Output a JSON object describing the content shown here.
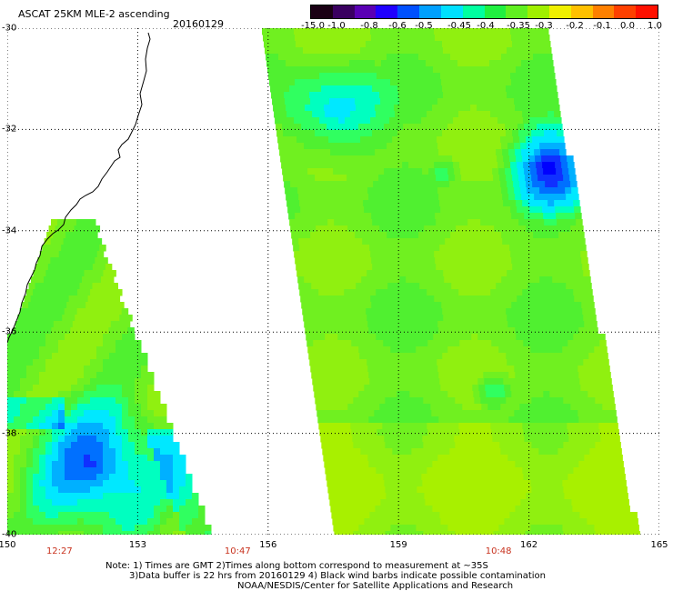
{
  "header": {
    "title": "ASCAT 25KM MLE-2 ascending",
    "date": "20160129"
  },
  "colorbar": {
    "labels": [
      "-15.0",
      "-1.0",
      "-0.8",
      "-0.6",
      "-0.5",
      "-0.45",
      "-0.4",
      "-0.35",
      "-0.3",
      "-0.2",
      "-0.1",
      "0.0",
      "1.0"
    ],
    "colors": [
      "#1a0014",
      "#3a0060",
      "#5a00b4",
      "#2000ff",
      "#0050ff",
      "#00a0ff",
      "#00e0ff",
      "#00ffa0",
      "#20f040",
      "#60f020",
      "#a0f000",
      "#f0f000",
      "#ffc000",
      "#ff8000",
      "#ff4000",
      "#ff1000"
    ]
  },
  "axes": {
    "lat_labels": [
      "-30",
      "-32",
      "-34",
      "-36",
      "-38",
      "-40"
    ],
    "lat_values": [
      -30,
      -32,
      -34,
      -36,
      -38,
      -40
    ],
    "lon_labels": [
      "150",
      "153",
      "156",
      "159",
      "162",
      "165"
    ],
    "lon_values": [
      150,
      153,
      156,
      159,
      162,
      165
    ],
    "lon_range": [
      150,
      165
    ],
    "lat_range": [
      -30,
      -40
    ]
  },
  "swath_times": [
    "12:27",
    "10:47",
    "10:48"
  ],
  "swath_time_lons": [
    151.2,
    155.3,
    161.3
  ],
  "notes": {
    "line1": "Note: 1) Times are GMT 2)Times along bottom correspond to measurement at ~35S",
    "line2": "3)Data buffer is 22 hrs from 20160129 4) Black wind barbs indicate possible contamination",
    "line3": "NOAA/NESDIS/Center for Satellite Applications and Research"
  }
}
